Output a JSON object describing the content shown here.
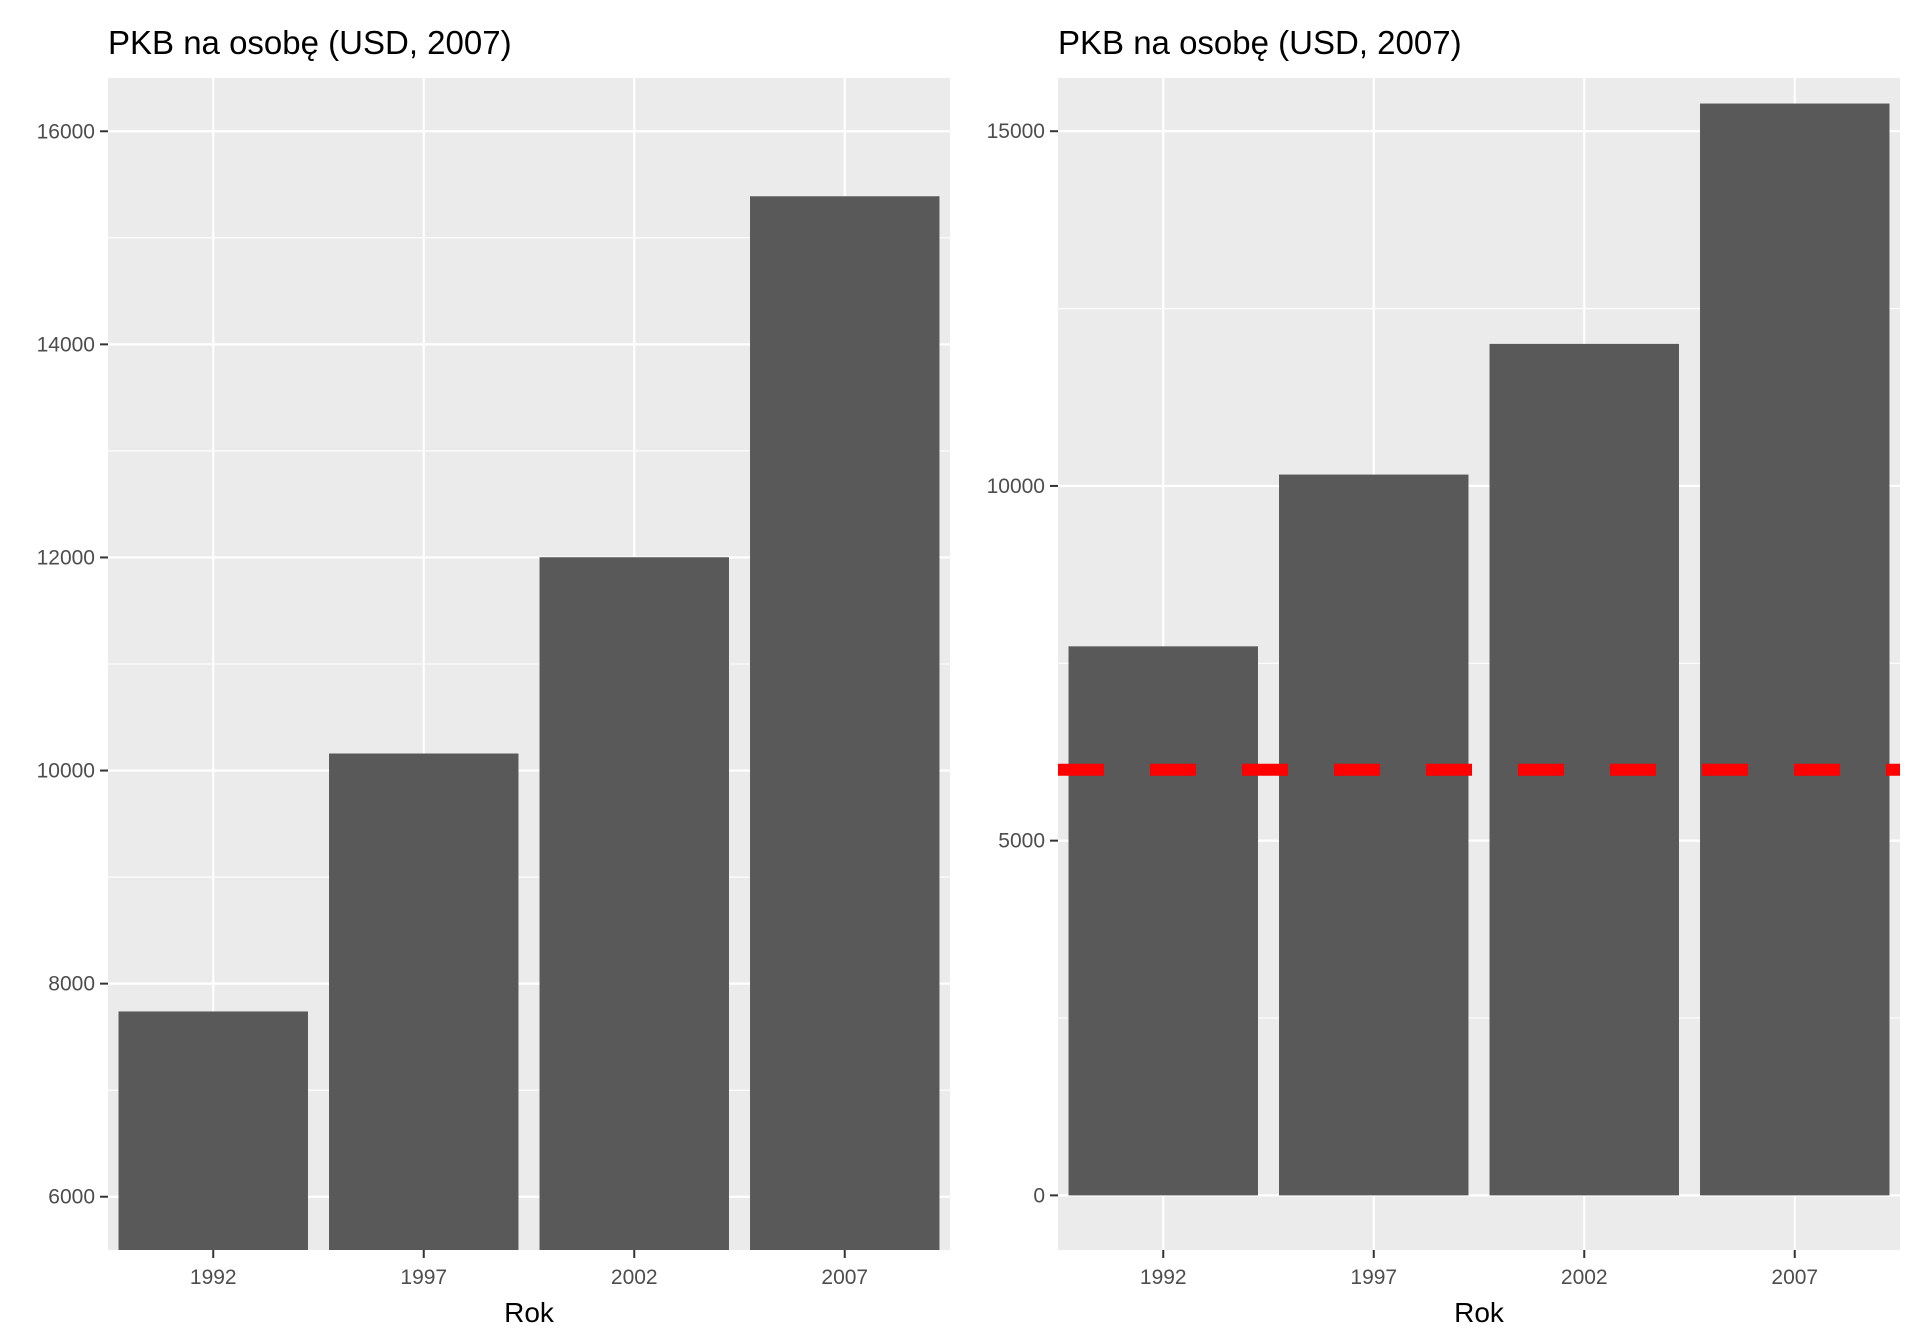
{
  "chart_data": [
    {
      "type": "bar",
      "title": "PKB na osobę (USD, 2007)",
      "xlabel": "Rok",
      "ylabel": "",
      "categories": [
        "1992",
        "1997",
        "2002",
        "2007"
      ],
      "values": [
        7739,
        10160,
        12002,
        15390
      ],
      "ylim": [
        5500,
        16500
      ],
      "yticks": [
        "6000",
        "8000",
        "10000",
        "12000",
        "14000",
        "16000"
      ],
      "grid": true
    },
    {
      "type": "bar",
      "title": "PKB na osobę (USD, 2007)",
      "xlabel": "Rok",
      "ylabel": "",
      "categories": [
        "1992",
        "1997",
        "2002",
        "2007"
      ],
      "values": [
        7739,
        10160,
        12002,
        15390
      ],
      "ylim": [
        -770,
        15750
      ],
      "yticks": [
        "0",
        "5000",
        "10000",
        "15000"
      ],
      "reference_line": {
        "y": 6000,
        "color": "#ff0000",
        "style": "dashed"
      },
      "grid": true
    }
  ],
  "colors": {
    "bar": "#595959",
    "panel": "#ebebeb",
    "grid": "#ffffff",
    "reference": "#ff0000"
  }
}
